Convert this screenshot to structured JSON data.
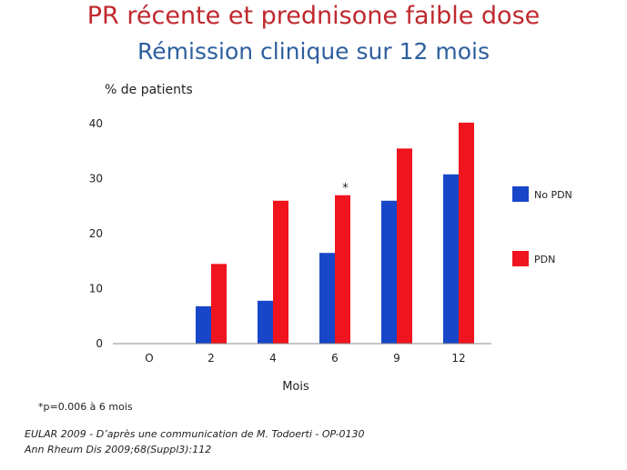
{
  "slide": {
    "title": "PR récente et prednisone faible dose",
    "subtitle": "Rémission clinique sur 12 mois",
    "footnote": "*p=0.006 à 6 mois",
    "source_line1": "EULAR 2009 - D’après une communication de M. Todoerti - OP-0130",
    "source_line2": "Ann Rheum Dis 2009;68(Suppl3):112"
  },
  "chart_data": {
    "type": "bar",
    "title": "",
    "xlabel": "Mois",
    "ylabel": "% de patients",
    "categories": [
      "O",
      "2",
      "4",
      "6",
      "9",
      "12"
    ],
    "yticks": [
      0,
      10,
      20,
      30,
      40
    ],
    "ylim": [
      0,
      43
    ],
    "grid": false,
    "legend_position": "right",
    "annotation": {
      "category": "6",
      "text": "*"
    },
    "series": [
      {
        "name": "No PDN",
        "color": "#1846c8",
        "values": [
          0,
          6.8,
          7.8,
          16.5,
          26,
          30.8
        ]
      },
      {
        "name": "PDN",
        "color": "#f0141e",
        "values": [
          0,
          14.5,
          26,
          27,
          35.5,
          40.2
        ]
      }
    ]
  }
}
